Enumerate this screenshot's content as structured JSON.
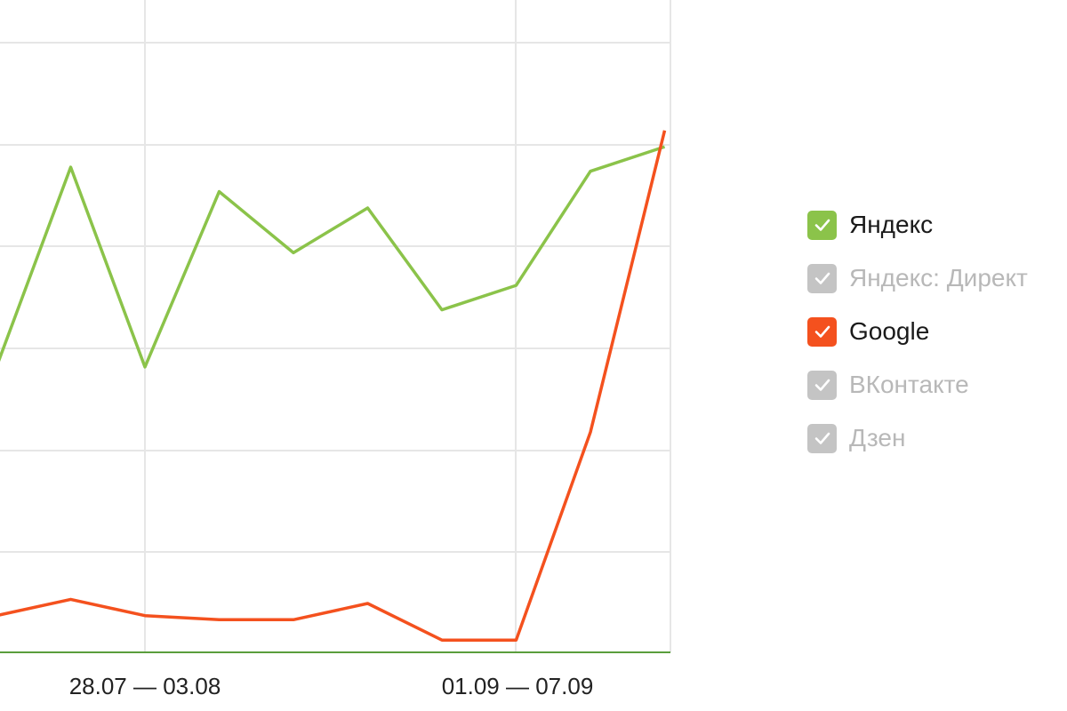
{
  "chart_data": {
    "type": "line",
    "x_labels_shown": [
      "28.07 — 03.08",
      "01.09 — 07.09"
    ],
    "series": [
      {
        "name": "Яндекс",
        "color": "#8bc34a",
        "visible": true,
        "values": [
          7.0,
          11.9,
          7.0,
          11.3,
          9.8,
          10.9,
          8.4,
          9.0,
          11.8,
          12.4
        ]
      },
      {
        "name": "Google",
        "color": "#f4511e",
        "visible": true,
        "values": [
          0.9,
          1.3,
          0.9,
          0.8,
          0.8,
          1.2,
          0.3,
          0.3,
          5.4,
          12.8
        ]
      }
    ],
    "grid": true,
    "legend_placement": "right"
  },
  "legend": [
    {
      "label": "Яндекс",
      "checked": true,
      "color": "#8bc34a"
    },
    {
      "label": "Яндекс: Директ",
      "checked": false,
      "color": "#c4c4c4"
    },
    {
      "label": "Google",
      "checked": true,
      "color": "#f4511e"
    },
    {
      "label": "ВКонтакте",
      "checked": false,
      "color": "#c4c4c4"
    },
    {
      "label": "Дзен",
      "checked": false,
      "color": "#c4c4c4"
    }
  ]
}
